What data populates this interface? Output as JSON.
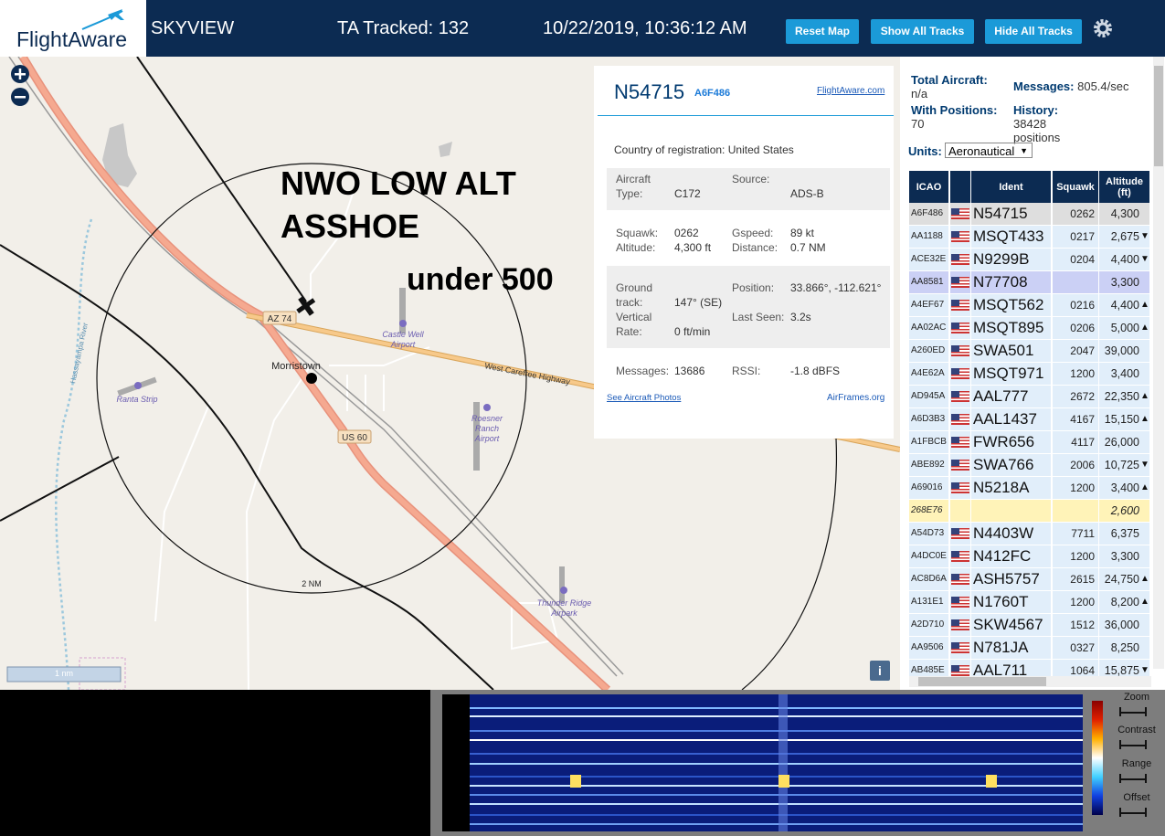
{
  "header": {
    "logo": "FlightAware",
    "app": "SKYVIEW",
    "tracked": "TA Tracked: 132",
    "datetime": "10/22/2019, 10:36:12 AM",
    "buttons": [
      "Reset Map",
      "Show All Tracks",
      "Hide All Tracks"
    ]
  },
  "map": {
    "labels": [
      "AZ 74",
      "Morristown",
      "Castle Well Airport",
      "West Carefree Highway",
      "Ranta Strip",
      "Roesner Ranch Airport",
      "US 60",
      "Thunder Ridge Airpark",
      "Hassayampa River"
    ],
    "annotations": [
      "NWO LOW ALT",
      "ASSHOE",
      "under 500"
    ],
    "range_ring": "2 NM",
    "scale": "1 nm",
    "info": "i"
  },
  "popup": {
    "ident": "N54715",
    "hex": "A6F486",
    "link": "FlightAware.com",
    "country_label": "Country of registration:",
    "country": "United States",
    "fields": [
      [
        {
          "label": "Aircraft Type:",
          "value": "C172"
        },
        {
          "label": "Source:",
          "value": "ADS-B"
        }
      ],
      [
        {
          "label": "Squawk:",
          "value": "0262"
        },
        {
          "label": "Gspeed:",
          "value": "89 kt"
        }
      ],
      [
        {
          "label": "Altitude:",
          "value": "4,300 ft"
        },
        {
          "label": "Distance:",
          "value": "0.7 NM"
        }
      ],
      [
        {
          "label": "Ground track:",
          "value": "147° (SE)"
        },
        {
          "label": "Position:",
          "value": "33.866°, -112.621°"
        }
      ],
      [
        {
          "label": "Vertical Rate:",
          "value": "0 ft/min"
        },
        {
          "label": "Last Seen:",
          "value": "3.2s"
        }
      ],
      [
        {
          "label": "Messages:",
          "value": "13686"
        },
        {
          "label": "RSSI:",
          "value": "-1.8 dBFS"
        }
      ]
    ],
    "photos": "See Aircraft Photos",
    "airframes": "AirFrames.org"
  },
  "stats": {
    "total_label": "Total Aircraft:",
    "total": "n/a",
    "messages_label": "Messages:",
    "messages": "805.4/sec",
    "positions_label": "With Positions:",
    "positions": "70",
    "history_label": "History:",
    "history": "38428 positions",
    "units_label": "Units:",
    "units": "Aeronautical"
  },
  "table": {
    "columns": [
      "ICAO",
      "Ident",
      "Squawk",
      "Altitude (ft)"
    ],
    "rows": [
      {
        "icao": "A6F486",
        "ident": "N54715",
        "squawk": "0262",
        "altitude": "4,300"
      },
      {
        "icao": "AA1188",
        "ident": "MSQT433",
        "squawk": "0217",
        "altitude": "2,675",
        "trend": "▼"
      },
      {
        "icao": "ACE32E",
        "ident": "N9299B",
        "squawk": "0204",
        "altitude": "4,400",
        "trend": "▼"
      },
      {
        "icao": "AA8581",
        "ident": "N77708",
        "altitude": "3,300"
      },
      {
        "icao": "A4EF67",
        "ident": "MSQT562",
        "squawk": "0216",
        "altitude": "4,400",
        "trend": "▲"
      },
      {
        "icao": "AA02AC",
        "ident": "MSQT895",
        "squawk": "0206",
        "altitude": "5,000",
        "trend": "▲"
      },
      {
        "icao": "A260ED",
        "ident": "SWA501",
        "squawk": "2047",
        "altitude": "39,000"
      },
      {
        "icao": "A4E62A",
        "ident": "MSQT971",
        "squawk": "1200",
        "altitude": "3,400"
      },
      {
        "icao": "AD945A",
        "ident": "AAL777",
        "squawk": "2672",
        "altitude": "22,350",
        "trend": "▲"
      },
      {
        "icao": "A6D3B3",
        "ident": "AAL1437",
        "squawk": "4167",
        "altitude": "15,150",
        "trend": "▲"
      },
      {
        "icao": "A1FBCB",
        "ident": "FWR656",
        "squawk": "4117",
        "altitude": "26,000"
      },
      {
        "icao": "ABE892",
        "ident": "SWA766",
        "squawk": "2006",
        "altitude": "10,725",
        "trend": "▼"
      },
      {
        "icao": "A69016",
        "ident": "N5218A",
        "squawk": "1200",
        "altitude": "3,400",
        "trend": "▲"
      },
      {
        "icao": "268E76",
        "altitude": "2,600"
      },
      {
        "icao": "A54D73",
        "ident": "N4403W",
        "squawk": "7711",
        "altitude": "6,375"
      },
      {
        "icao": "A4DC0E",
        "ident": "N412FC",
        "squawk": "1200",
        "altitude": "3,300"
      },
      {
        "icao": "AC8D6A",
        "ident": "ASH5757",
        "squawk": "2615",
        "altitude": "24,750",
        "trend": "▲"
      },
      {
        "icao": "A131E1",
        "ident": "N1760T",
        "squawk": "1200",
        "altitude": "8,200",
        "trend": "▲"
      },
      {
        "icao": "A2D710",
        "ident": "SKW4567",
        "squawk": "1512",
        "altitude": "36,000"
      },
      {
        "icao": "AA9506",
        "ident": "N781JA",
        "squawk": "0327",
        "altitude": "8,250"
      },
      {
        "icao": "AB485E",
        "ident": "AAL711",
        "squawk": "1064",
        "altitude": "15,875",
        "trend": "▼"
      }
    ]
  },
  "waterfall": {
    "controls": [
      "Zoom",
      "Contrast",
      "Range",
      "Offset"
    ]
  }
}
